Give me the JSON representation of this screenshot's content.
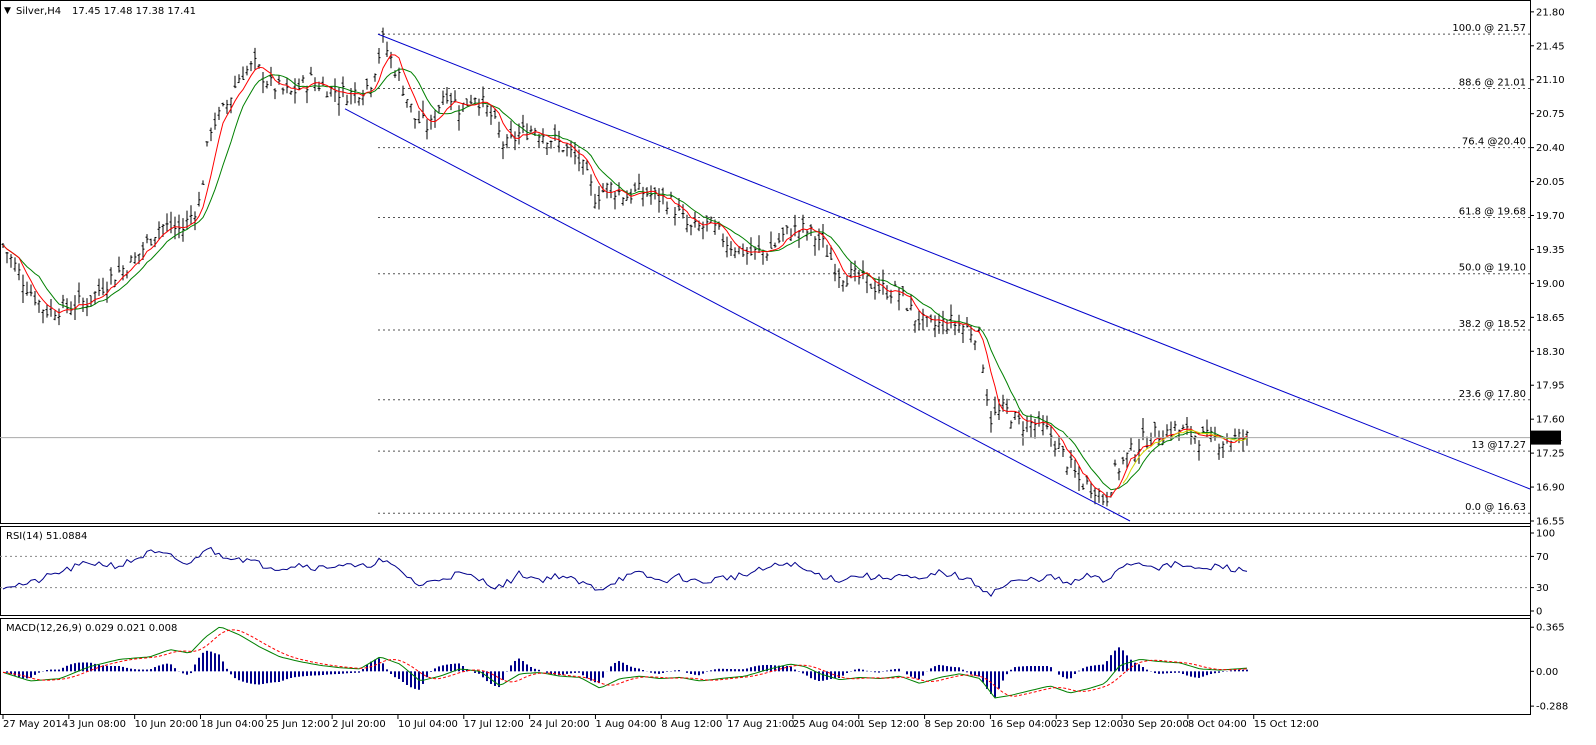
{
  "header": {
    "symbol_label": "Silver,H4",
    "ohlc_label": "17.45 17.48 17.38 17.41"
  },
  "colors": {
    "bars": "#000000",
    "ma_fast": "#ff0000",
    "ma_slow": "#008000",
    "ma_third": "#d4d400",
    "channel": "#0000cc",
    "rsi_line": "#00008b",
    "macd_hist": "#00008b",
    "macd_line": "#008000",
    "macd_signal": "#ff0000",
    "fib_grid": "#555555",
    "price_marker_bg": "#000000"
  },
  "chart_data": [
    {
      "name": "main",
      "type": "ohlc",
      "ylim": [
        16.55,
        21.85
      ],
      "y_ticks": [
        "21.80",
        "21.45",
        "21.10",
        "20.75",
        "20.40",
        "20.05",
        "19.70",
        "19.35",
        "19.00",
        "18.65",
        "18.30",
        "17.95",
        "17.60",
        "17.25",
        "16.90",
        "16.55"
      ],
      "x_ticks": [
        "27 May 2014",
        "3 Jun 08:00",
        "10 Jun 20:00",
        "18 Jun 04:00",
        "25 Jun 12:00",
        "2 Jul 20:00",
        "10 Jul 04:00",
        "17 Jul 12:00",
        "24 Jul 20:00",
        "1 Aug 04:00",
        "8 Aug 12:00",
        "17 Aug 21:00",
        "25 Aug 04:00",
        "1 Sep 12:00",
        "8 Sep 20:00",
        "16 Sep 04:00",
        "23 Sep 12:00",
        "30 Sep 20:00",
        "8 Oct 04:00",
        "15 Oct 12:00"
      ],
      "current_price": "17.41",
      "fib_levels": [
        {
          "label": "100.0 @ 21.57",
          "value": 21.57
        },
        {
          "label": "88.6 @ 21.01",
          "value": 21.01
        },
        {
          "label": "76.4 @20.40",
          "value": 20.4
        },
        {
          "label": "61.8 @ 19.68",
          "value": 19.68
        },
        {
          "label": "50.0 @ 19.10",
          "value": 19.1
        },
        {
          "label": "38.2 @ 18.52",
          "value": 18.52
        },
        {
          "label": "23.6 @ 17.80",
          "value": 17.8
        },
        {
          "label": "13 @17.27",
          "value": 17.27
        },
        {
          "label": "0.0 @ 16.63",
          "value": 16.63
        }
      ],
      "price_path": [
        [
          0,
          19.45
        ],
        [
          25,
          19.0
        ],
        [
          45,
          18.72
        ],
        [
          65,
          18.75
        ],
        [
          88,
          18.82
        ],
        [
          110,
          19.05
        ],
        [
          135,
          19.25
        ],
        [
          160,
          19.6
        ],
        [
          182,
          19.55
        ],
        [
          200,
          19.85
        ],
        [
          210,
          20.6
        ],
        [
          225,
          20.8
        ],
        [
          240,
          21.15
        ],
        [
          255,
          21.25
        ],
        [
          270,
          21.05
        ],
        [
          290,
          20.95
        ],
        [
          310,
          21.1
        ],
        [
          330,
          21.0
        ],
        [
          350,
          20.95
        ],
        [
          370,
          21.05
        ],
        [
          383,
          21.5
        ],
        [
          400,
          21.1
        ],
        [
          415,
          20.7
        ],
        [
          430,
          20.6
        ],
        [
          445,
          21.0
        ],
        [
          460,
          20.8
        ],
        [
          475,
          20.95
        ],
        [
          490,
          20.75
        ],
        [
          505,
          20.4
        ],
        [
          520,
          20.55
        ],
        [
          535,
          20.6
        ],
        [
          550,
          20.5
        ],
        [
          565,
          20.4
        ],
        [
          580,
          20.25
        ],
        [
          595,
          19.9
        ],
        [
          610,
          20.0
        ],
        [
          625,
          19.9
        ],
        [
          640,
          19.95
        ],
        [
          655,
          19.9
        ],
        [
          670,
          19.85
        ],
        [
          690,
          19.55
        ],
        [
          710,
          19.6
        ],
        [
          730,
          19.4
        ],
        [
          750,
          19.3
        ],
        [
          770,
          19.35
        ],
        [
          790,
          19.55
        ],
        [
          805,
          19.55
        ],
        [
          820,
          19.45
        ],
        [
          840,
          19.1
        ],
        [
          860,
          19.05
        ],
        [
          880,
          18.95
        ],
        [
          900,
          18.9
        ],
        [
          915,
          18.65
        ],
        [
          930,
          18.55
        ],
        [
          950,
          18.6
        ],
        [
          965,
          18.55
        ],
        [
          980,
          18.45
        ],
        [
          990,
          17.6
        ],
        [
          1005,
          17.7
        ],
        [
          1020,
          17.55
        ],
        [
          1035,
          17.55
        ],
        [
          1050,
          17.45
        ],
        [
          1065,
          17.2
        ],
        [
          1080,
          16.95
        ],
        [
          1095,
          16.9
        ],
        [
          1105,
          16.75
        ],
        [
          1115,
          17.05
        ],
        [
          1130,
          17.25
        ],
        [
          1145,
          17.4
        ],
        [
          1160,
          17.45
        ],
        [
          1175,
          17.5
        ],
        [
          1190,
          17.45
        ],
        [
          1205,
          17.4
        ],
        [
          1220,
          17.38
        ],
        [
          1235,
          17.4
        ],
        [
          1250,
          17.41
        ]
      ],
      "channel_upper": [
        [
          378,
          21.57
        ],
        [
          1530,
          16.88
        ]
      ],
      "channel_lower": [
        [
          345,
          20.8
        ],
        [
          1130,
          16.55
        ]
      ]
    },
    {
      "name": "rsi",
      "type": "line",
      "label": "RSI(14) 51.0884",
      "ylim": [
        0,
        100
      ],
      "y_ticks": [
        "100",
        "70",
        "30",
        "0"
      ],
      "levels": [
        70,
        30
      ],
      "path": [
        [
          0,
          32
        ],
        [
          30,
          35
        ],
        [
          60,
          50
        ],
        [
          90,
          62
        ],
        [
          120,
          58
        ],
        [
          150,
          75
        ],
        [
          170,
          70
        ],
        [
          190,
          58
        ],
        [
          205,
          82
        ],
        [
          220,
          72
        ],
        [
          240,
          68
        ],
        [
          260,
          60
        ],
        [
          280,
          55
        ],
        [
          300,
          60
        ],
        [
          320,
          55
        ],
        [
          340,
          60
        ],
        [
          360,
          55
        ],
        [
          380,
          65
        ],
        [
          400,
          52
        ],
        [
          420,
          32
        ],
        [
          440,
          42
        ],
        [
          460,
          48
        ],
        [
          480,
          40
        ],
        [
          500,
          30
        ],
        [
          520,
          48
        ],
        [
          540,
          40
        ],
        [
          560,
          46
        ],
        [
          580,
          36
        ],
        [
          600,
          28
        ],
        [
          620,
          42
        ],
        [
          640,
          48
        ],
        [
          660,
          38
        ],
        [
          680,
          44
        ],
        [
          700,
          36
        ],
        [
          720,
          42
        ],
        [
          745,
          46
        ],
        [
          770,
          56
        ],
        [
          790,
          62
        ],
        [
          805,
          52
        ],
        [
          820,
          46
        ],
        [
          840,
          40
        ],
        [
          860,
          46
        ],
        [
          880,
          42
        ],
        [
          900,
          46
        ],
        [
          920,
          38
        ],
        [
          940,
          50
        ],
        [
          960,
          44
        ],
        [
          980,
          32
        ],
        [
          990,
          22
        ],
        [
          1010,
          36
        ],
        [
          1030,
          40
        ],
        [
          1050,
          44
        ],
        [
          1070,
          34
        ],
        [
          1090,
          46
        ],
        [
          1105,
          36
        ],
        [
          1120,
          58
        ],
        [
          1140,
          62
        ],
        [
          1160,
          56
        ],
        [
          1180,
          60
        ],
        [
          1200,
          52
        ],
        [
          1220,
          58
        ],
        [
          1240,
          52
        ],
        [
          1250,
          51
        ]
      ]
    },
    {
      "name": "macd",
      "type": "histogram_line",
      "label": "MACD(12,26,9) 0.029 0.021 0.008",
      "ylim": [
        -0.32,
        0.4
      ],
      "y_ticks": [
        "0.365",
        "0.00",
        "-0.288"
      ],
      "macd_path": [
        [
          0,
          0.0
        ],
        [
          30,
          -0.08
        ],
        [
          60,
          -0.06
        ],
        [
          90,
          0.04
        ],
        [
          120,
          0.1
        ],
        [
          150,
          0.12
        ],
        [
          170,
          0.18
        ],
        [
          190,
          0.15
        ],
        [
          205,
          0.28
        ],
        [
          220,
          0.37
        ],
        [
          240,
          0.3
        ],
        [
          260,
          0.2
        ],
        [
          280,
          0.12
        ],
        [
          300,
          0.08
        ],
        [
          320,
          0.05
        ],
        [
          340,
          0.03
        ],
        [
          360,
          0.02
        ],
        [
          380,
          0.12
        ],
        [
          400,
          0.06
        ],
        [
          420,
          -0.08
        ],
        [
          440,
          -0.04
        ],
        [
          460,
          0.02
        ],
        [
          480,
          0.0
        ],
        [
          500,
          -0.12
        ],
        [
          520,
          -0.02
        ],
        [
          540,
          -0.01
        ],
        [
          560,
          -0.04
        ],
        [
          580,
          -0.05
        ],
        [
          600,
          -0.14
        ],
        [
          620,
          -0.06
        ],
        [
          640,
          -0.04
        ],
        [
          660,
          -0.06
        ],
        [
          680,
          -0.05
        ],
        [
          700,
          -0.08
        ],
        [
          720,
          -0.06
        ],
        [
          745,
          -0.04
        ],
        [
          770,
          0.02
        ],
        [
          790,
          0.06
        ],
        [
          805,
          0.04
        ],
        [
          820,
          -0.02
        ],
        [
          840,
          -0.07
        ],
        [
          860,
          -0.05
        ],
        [
          880,
          -0.06
        ],
        [
          900,
          -0.04
        ],
        [
          920,
          -0.1
        ],
        [
          940,
          -0.05
        ],
        [
          960,
          -0.02
        ],
        [
          980,
          -0.06
        ],
        [
          995,
          -0.22
        ],
        [
          1010,
          -0.2
        ],
        [
          1030,
          -0.16
        ],
        [
          1050,
          -0.12
        ],
        [
          1070,
          -0.18
        ],
        [
          1090,
          -0.14
        ],
        [
          1105,
          -0.1
        ],
        [
          1120,
          0.05
        ],
        [
          1140,
          0.1
        ],
        [
          1160,
          0.08
        ],
        [
          1180,
          0.07
        ],
        [
          1200,
          0.02
        ],
        [
          1220,
          0.01
        ],
        [
          1250,
          0.029
        ]
      ]
    }
  ]
}
